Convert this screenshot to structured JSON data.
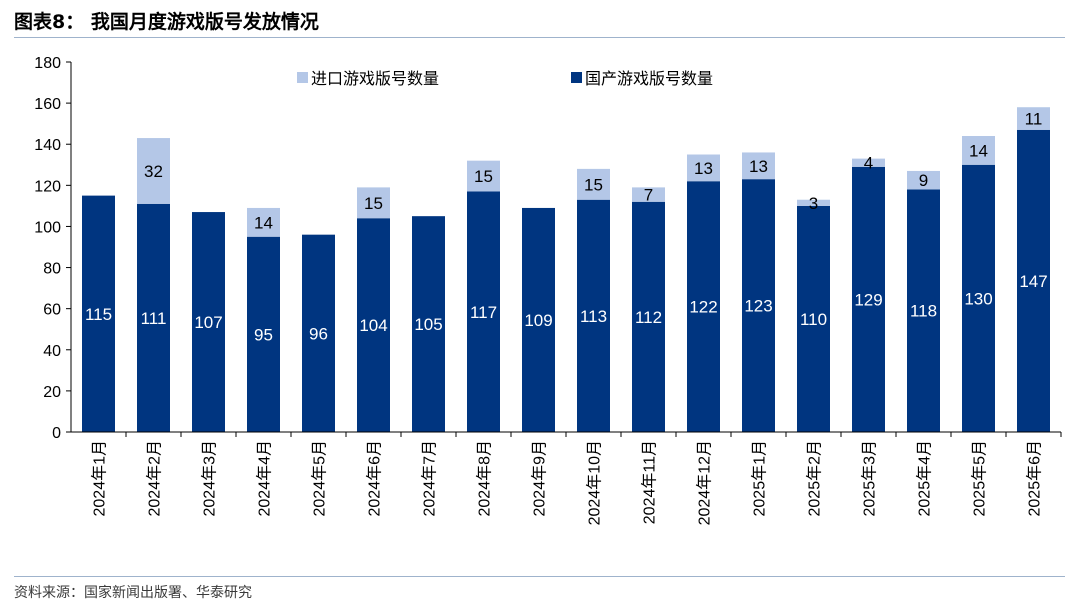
{
  "title": "图表8：   我国月度游戏版号发放情况",
  "source": "资料来源：国家新闻出版署、华泰研究",
  "colors": {
    "domestic": "#003580",
    "imported": "#b4c7e7",
    "axis": "#000000",
    "rule": "#9fb3cc"
  },
  "chart_data": {
    "type": "bar",
    "stacked": true,
    "ylim": [
      0,
      180
    ],
    "yticks": [
      0,
      20,
      40,
      60,
      80,
      100,
      120,
      140,
      160,
      180
    ],
    "legend_position": "top",
    "categories": [
      "2024年1月",
      "2024年2月",
      "2024年3月",
      "2024年4月",
      "2024年5月",
      "2024年6月",
      "2024年7月",
      "2024年8月",
      "2024年9月",
      "2024年10月",
      "2024年11月",
      "2024年12月",
      "2025年1月",
      "2025年2月",
      "2025年3月",
      "2025年4月",
      "2025年5月",
      "2025年6月"
    ],
    "series": [
      {
        "name": "国产游戏版号数量",
        "color": "#003580",
        "values": [
          115,
          111,
          107,
          95,
          96,
          104,
          105,
          117,
          109,
          113,
          112,
          122,
          123,
          110,
          129,
          118,
          130,
          147
        ]
      },
      {
        "name": "进口游戏版号数量",
        "color": "#b4c7e7",
        "values": [
          null,
          32,
          null,
          14,
          null,
          15,
          null,
          15,
          null,
          15,
          7,
          13,
          13,
          3,
          4,
          9,
          14,
          11
        ]
      }
    ]
  }
}
